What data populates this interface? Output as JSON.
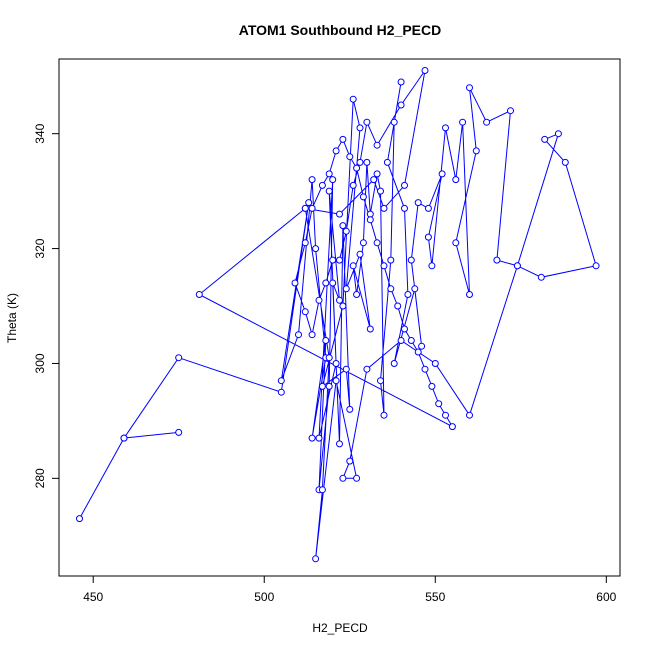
{
  "chart_data": {
    "type": "scatter",
    "mode": "lines+markers",
    "title": "ATOM1 Southbound H2_PECD",
    "xlabel": "H2_PECD",
    "ylabel": "Theta (K)",
    "xlim": [
      440,
      604
    ],
    "ylim": [
      263,
      353
    ],
    "xticks": [
      "450",
      "500",
      "550",
      "600"
    ],
    "yticks": [
      "280",
      "300",
      "320",
      "340"
    ],
    "grid": false,
    "color": "#0000ff",
    "series": [
      {
        "points": [
          [
            446,
            273
          ],
          [
            459,
            287
          ],
          [
            475,
            288
          ],
          [
            459,
            287
          ],
          [
            475,
            301
          ],
          [
            505,
            295
          ],
          [
            513,
            328
          ],
          [
            505,
            297
          ],
          [
            510,
            305
          ],
          [
            514,
            332
          ],
          [
            515,
            320
          ],
          [
            518,
            301
          ],
          [
            514,
            287
          ],
          [
            518,
            304
          ],
          [
            516,
            278
          ],
          [
            519,
            296
          ],
          [
            520,
            332
          ],
          [
            516,
            287
          ],
          [
            521,
            300
          ],
          [
            519,
            330
          ],
          [
            522,
            311
          ],
          [
            520,
            314
          ],
          [
            522,
            286
          ],
          [
            523,
            324
          ],
          [
            525,
            292
          ],
          [
            524,
            299
          ],
          [
            517,
            296
          ],
          [
            523,
            310
          ],
          [
            526,
            346
          ],
          [
            528,
            341
          ],
          [
            524,
            313
          ],
          [
            528,
            319
          ],
          [
            531,
            306
          ],
          [
            526,
            317
          ],
          [
            527,
            312
          ],
          [
            529,
            321
          ],
          [
            530,
            335
          ],
          [
            531,
            326
          ],
          [
            533,
            333
          ],
          [
            534,
            330
          ],
          [
            535,
            291
          ],
          [
            534,
            297
          ],
          [
            537,
            318
          ],
          [
            538,
            342
          ],
          [
            540,
            349
          ],
          [
            536,
            335
          ],
          [
            541,
            327
          ],
          [
            542,
            312
          ],
          [
            538,
            300
          ],
          [
            544,
            313
          ],
          [
            546,
            303
          ],
          [
            543,
            318
          ],
          [
            545,
            328
          ],
          [
            548,
            327
          ],
          [
            552,
            333
          ],
          [
            548,
            322
          ],
          [
            549,
            317
          ],
          [
            553,
            341
          ],
          [
            556,
            332
          ],
          [
            558,
            342
          ],
          [
            560,
            312
          ],
          [
            556,
            321
          ],
          [
            562,
            337
          ],
          [
            560,
            348
          ],
          [
            565,
            342
          ],
          [
            572,
            344
          ],
          [
            568,
            318
          ],
          [
            574,
            317
          ],
          [
            581,
            315
          ],
          [
            597,
            317
          ],
          [
            588,
            335
          ],
          [
            582,
            339
          ],
          [
            586,
            340
          ],
          [
            574,
            317
          ],
          [
            560,
            291
          ],
          [
            550,
            300
          ],
          [
            540,
            304
          ],
          [
            530,
            299
          ],
          [
            525,
            283
          ],
          [
            523,
            280
          ],
          [
            527,
            280
          ],
          [
            521,
            297
          ],
          [
            515,
            266
          ],
          [
            517,
            278
          ],
          [
            519,
            301
          ],
          [
            512,
            327
          ],
          [
            522,
            326
          ],
          [
            532,
            332
          ],
          [
            535,
            327
          ],
          [
            541,
            331
          ],
          [
            547,
            351
          ],
          [
            540,
            345
          ],
          [
            533,
            338
          ],
          [
            530,
            342
          ],
          [
            528,
            335
          ],
          [
            526,
            331
          ],
          [
            524,
            323
          ],
          [
            522,
            318
          ],
          [
            520,
            318
          ],
          [
            518,
            314
          ],
          [
            516,
            311
          ],
          [
            514,
            305
          ],
          [
            512,
            309
          ],
          [
            509,
            314
          ],
          [
            512,
            321
          ],
          [
            514,
            327
          ],
          [
            517,
            331
          ],
          [
            519,
            333
          ],
          [
            521,
            337
          ],
          [
            523,
            339
          ],
          [
            525,
            336
          ],
          [
            527,
            334
          ],
          [
            529,
            329
          ],
          [
            531,
            325
          ],
          [
            533,
            321
          ],
          [
            535,
            317
          ],
          [
            537,
            313
          ],
          [
            539,
            310
          ],
          [
            541,
            306
          ],
          [
            543,
            304
          ],
          [
            545,
            302
          ],
          [
            547,
            299
          ],
          [
            549,
            296
          ],
          [
            551,
            293
          ],
          [
            553,
            291
          ],
          [
            555,
            289
          ],
          [
            481,
            312
          ],
          [
            512,
            327
          ]
        ]
      }
    ]
  }
}
